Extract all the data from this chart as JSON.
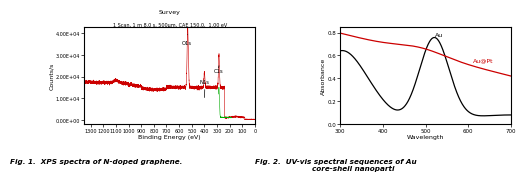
{
  "fig1": {
    "title": "Survey",
    "subtitle": "1 Scan, 1 m 8.0 s, 500μm, CAE 150.0,  1.00 eV",
    "xlabel": "Binding Energy (eV)",
    "ylabel": "Counts/s",
    "xlim": [
      1350,
      0
    ],
    "ylim": [
      -2000.0,
      43000.0
    ],
    "yticks": [
      0,
      10000.0,
      20000.0,
      30000.0,
      40000.0
    ],
    "xticks": [
      1300,
      1200,
      1100,
      1000,
      900,
      800,
      700,
      600,
      500,
      400,
      300,
      200,
      100,
      0
    ],
    "line_color": "#cc0000",
    "green_color": "#00aa00"
  },
  "fig2": {
    "xlabel": "Wavelength",
    "ylabel": "Absorbance",
    "xlim": [
      300,
      700
    ],
    "ylim": [
      0.0,
      0.85
    ],
    "yticks": [
      0.0,
      0.2,
      0.4,
      0.6,
      0.8
    ],
    "xticks": [
      300,
      400,
      500,
      600,
      700
    ],
    "au_color": "#000000",
    "aupt_color": "#cc0000",
    "au_label": "Au",
    "aupt_label": "Au@Pt"
  },
  "caption1": "Fig. 1.  XPS spectra of N-doped graphene.",
  "caption2": "Fig. 2.  UV-vis spectral sequences of Au\n              core-shell nanoparti"
}
